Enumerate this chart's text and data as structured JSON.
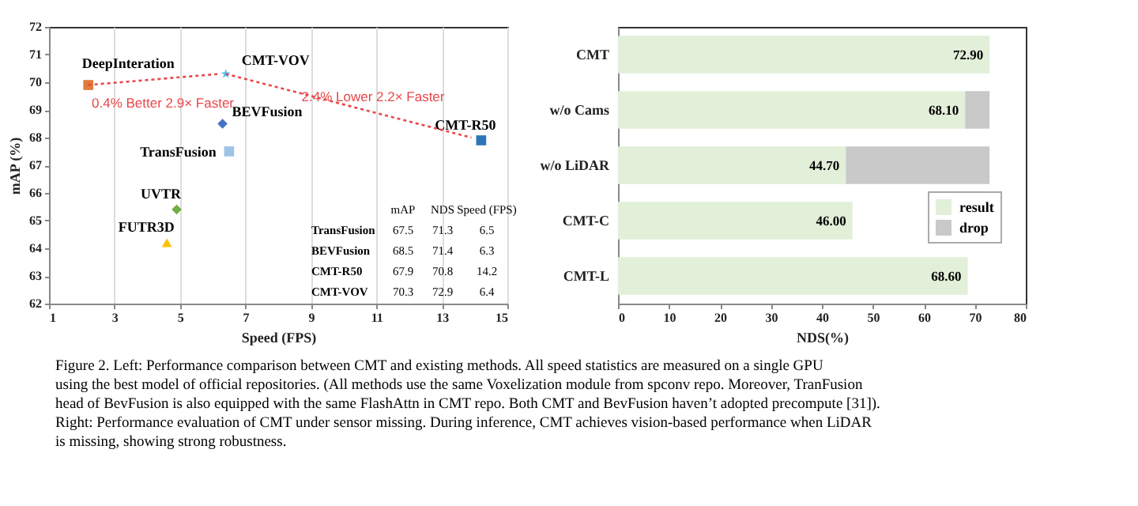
{
  "chart_data": [
    {
      "type": "scatter",
      "xlabel": "Speed (FPS)",
      "ylabel": "mAP (%)",
      "xlim": [
        1,
        15
      ],
      "xticks": [
        1,
        3,
        5,
        7,
        9,
        11,
        13,
        15
      ],
      "ylim": [
        62,
        72
      ],
      "yticks": [
        62,
        63,
        64,
        65,
        66,
        67,
        68,
        69,
        70,
        71,
        72
      ],
      "grid": "x",
      "series": [
        {
          "name": "DeepInteration",
          "color": "#e07b39",
          "marker": "square",
          "x": [
            2.2
          ],
          "values": [
            69.9
          ]
        },
        {
          "name": "CMT-VOV",
          "color": "#4fc3f7",
          "marker": "star",
          "x": [
            6.4
          ],
          "values": [
            70.3
          ]
        },
        {
          "name": "BEVFusion",
          "color": "#4472c4",
          "marker": "diamond",
          "x": [
            6.3
          ],
          "values": [
            68.5
          ]
        },
        {
          "name": "TransFusion",
          "color": "#9dc3e6",
          "marker": "square",
          "x": [
            6.5
          ],
          "values": [
            67.5
          ]
        },
        {
          "name": "UVTR",
          "color": "#70ad47",
          "marker": "diamond",
          "x": [
            4.9
          ],
          "values": [
            65.4
          ]
        },
        {
          "name": "FUTR3D",
          "color": "#ffc000",
          "marker": "triangle",
          "x": [
            4.6
          ],
          "values": [
            64.2
          ]
        },
        {
          "name": "CMT-R50",
          "color": "#2e75b6",
          "marker": "square",
          "x": [
            14.2
          ],
          "values": [
            67.9
          ]
        },
        {
          "type": "line",
          "color": "#e8474a",
          "line_style": "dotted",
          "marker": "none",
          "x": [
            2.2,
            6.2
          ],
          "values": [
            69.9,
            70.3
          ]
        },
        {
          "type": "line",
          "color": "#e8474a",
          "line_style": "dotted",
          "marker": "none",
          "x": [
            6.4,
            13.9
          ],
          "values": [
            70.3,
            68.0
          ]
        }
      ],
      "annotations": [
        "0.4% Better 2.9× Faster",
        "2.4% Lower 2.2× Faster",
        "mAP",
        "NDS",
        "Speed (FPS)",
        "TransFusion",
        "67.5",
        "71.3",
        "6.5",
        "BEVFusion",
        "68.5",
        "71.4",
        "6.3",
        "CMT-R50",
        "67.9",
        "70.8",
        "14.2",
        "CMT-VOV",
        "70.3",
        "72.9",
        "6.4"
      ]
    },
    {
      "type": "bar",
      "orientation": "horizontal",
      "stacked": true,
      "xlabel": "NDS(%)",
      "categories": [
        "CMT",
        "w/o Cams",
        "w/o LiDAR",
        "CMT-C",
        "CMT-L"
      ],
      "xlim": [
        0,
        80
      ],
      "xticks": [
        0,
        10,
        20,
        30,
        40,
        50,
        60,
        70,
        80
      ],
      "legend": "bottom right",
      "series": [
        {
          "name": "result",
          "color": "#e2efd9",
          "values": [
            72.9,
            68.1,
            44.7,
            46.0,
            68.6
          ],
          "value_labels": [
            "72.90",
            "68.10",
            "44.70",
            "46.00",
            "68.60"
          ]
        },
        {
          "name": "drop",
          "color": "#c9c9c9",
          "values": [
            null,
            4.8,
            28.2,
            null,
            null
          ]
        }
      ]
    },
    {
      "type": "other",
      "annotations": [
        "Figure 2. Left: Performance comparison between CMT and existing methods. All speed statistics are measured on a single GPU",
        "using the best model of official repositories. (All methods use the same Voxelization module from spconv repo. Moreover, TranFusion",
        "head of BevFusion is also equipped with the same FlashAttn in CMT repo. Both CMT and BevFusion haven’t adopted precompute [31]).",
        "Right: Performance evaluation of CMT under sensor missing. During inference, CMT achieves vision-based performance when LiDAR",
        "is missing, showing strong robustness."
      ]
    }
  ]
}
